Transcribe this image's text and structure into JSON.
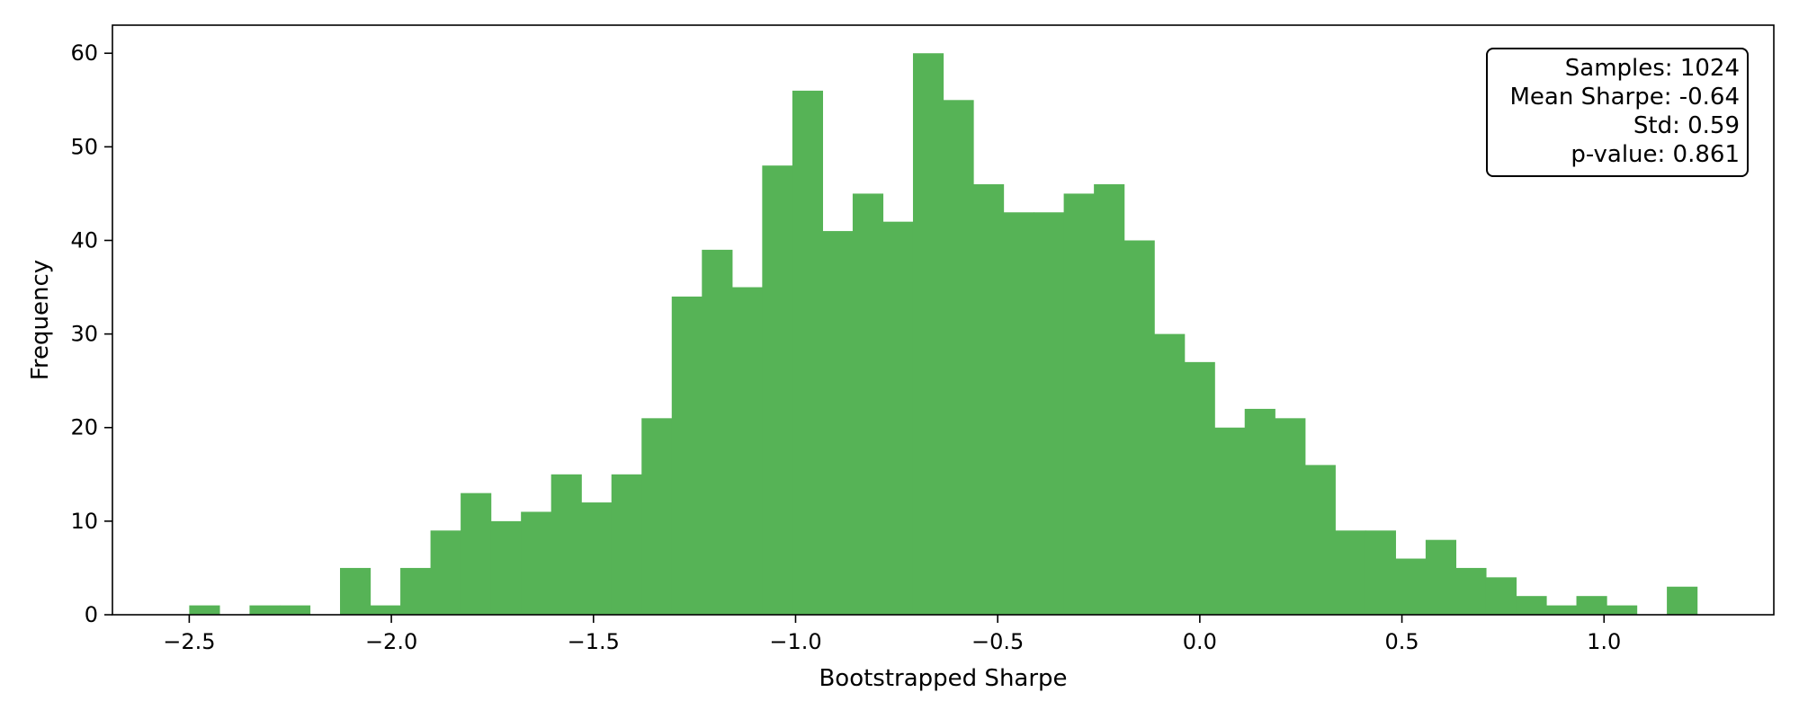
{
  "chart_data": {
    "type": "bar",
    "title": "",
    "xlabel": "Bootstrapped Sharpe",
    "ylabel": "Frequency",
    "xlim": [
      -2.69,
      1.42
    ],
    "ylim": [
      0,
      63
    ],
    "xticks": [
      -2.5,
      -2.0,
      -1.5,
      -1.0,
      -0.5,
      0.0,
      0.5,
      1.0
    ],
    "xtick_labels": [
      "−2.5",
      "−2.0",
      "−1.5",
      "−1.0",
      "−0.5",
      "0.0",
      "0.5",
      "1.0"
    ],
    "yticks": [
      0,
      10,
      20,
      30,
      40,
      50,
      60
    ],
    "ytick_labels": [
      "0",
      "10",
      "20",
      "30",
      "40",
      "50",
      "60"
    ],
    "bin_start": -2.5,
    "bin_width": 0.0746,
    "counts": [
      1,
      0,
      1,
      1,
      0,
      5,
      1,
      5,
      9,
      13,
      10,
      11,
      15,
      12,
      15,
      21,
      34,
      39,
      35,
      48,
      56,
      41,
      45,
      42,
      60,
      55,
      46,
      43,
      43,
      45,
      46,
      40,
      30,
      27,
      20,
      22,
      21,
      16,
      9,
      9,
      6,
      8,
      5,
      4,
      2,
      1,
      2,
      1,
      0,
      3
    ],
    "bar_color": "#56b356",
    "grid": false,
    "legend": "none",
    "stats_box": {
      "placement": "top-right",
      "lines": [
        "Samples: 1024",
        "Mean Sharpe: -0.64",
        "Std: 0.59",
        "p-value: 0.861"
      ]
    }
  }
}
